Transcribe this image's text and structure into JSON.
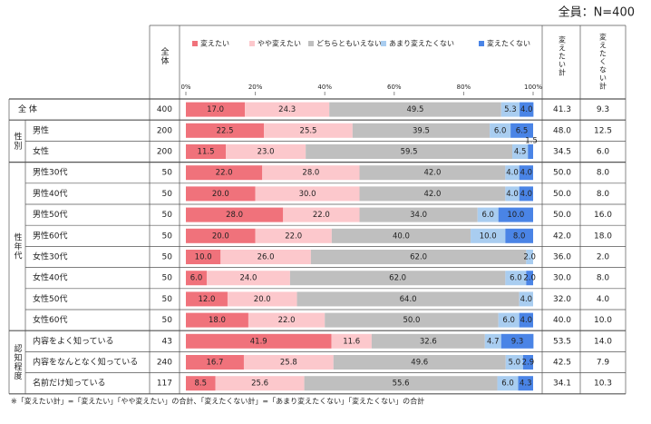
{
  "title": "全員：N=400",
  "header": {
    "n": "全体",
    "total_want": "変えたい計",
    "total_not": "変えたくない計"
  },
  "groups": [
    "性別",
    "性年代",
    "認知程度"
  ],
  "footnote": "※「変えたい計」=「変えたい」「やや変えたい」の合計、「変えたくない計」=「あまり変えたくない」「変えたくない」の合計",
  "chart_data": {
    "type": "stacked-bar",
    "categories": [
      "全 体",
      "男性",
      "女性",
      "男性30代",
      "男性40代",
      "男性50代",
      "男性60代",
      "女性30代",
      "女性40代",
      "女性50代",
      "女性60代",
      "内容をよく知っている",
      "内容をなんとなく知っている",
      "名前だけ知っている"
    ],
    "n": [
      400,
      200,
      200,
      50,
      50,
      50,
      50,
      50,
      50,
      50,
      50,
      43,
      240,
      117
    ],
    "xlim": [
      0,
      100
    ],
    "xticks": [
      {
        "value": 0,
        "label": "0%"
      },
      {
        "value": 20,
        "label": "20%"
      },
      {
        "value": 40,
        "label": "40%"
      },
      {
        "value": 60,
        "label": "60%"
      },
      {
        "value": 80,
        "label": "80%"
      },
      {
        "value": 100,
        "label": "100%"
      }
    ],
    "series": [
      {
        "name": "変えたい",
        "color": "#f0727b",
        "values": [
          17,
          22.5,
          11.5,
          22,
          20,
          28,
          20,
          10,
          6,
          12,
          18,
          41.9,
          16.7,
          8.5
        ],
        "value_labels": [
          "17.0",
          "22.5",
          "11.5",
          "22.0",
          "20.0",
          "28.0",
          "20.0",
          "10.0",
          "6.0",
          "12.0",
          "18.0",
          "41.9",
          "16.7",
          "8.5"
        ]
      },
      {
        "name": "やや変えたい",
        "color": "#fcc8cc",
        "values": [
          24.3,
          25.5,
          23,
          28,
          30,
          22,
          22,
          26,
          24,
          20,
          22,
          11.6,
          25.8,
          25.6
        ],
        "value_labels": [
          "24.3",
          "25.5",
          "23.0",
          "28.0",
          "30.0",
          "22.0",
          "22.0",
          "26.0",
          "24.0",
          "20.0",
          "22.0",
          "11.6",
          "25.8",
          "25.6"
        ]
      },
      {
        "name": "どちらともいえない",
        "color": "#bfbfbf",
        "values": [
          49.5,
          39.5,
          59.5,
          42,
          42,
          34,
          40,
          62,
          62,
          64,
          50,
          32.6,
          49.6,
          55.6
        ],
        "value_labels": [
          "49.5",
          "39.5",
          "59.5",
          "42.0",
          "42.0",
          "34.0",
          "40.0",
          "62.0",
          "62.0",
          "64.0",
          "50.0",
          "32.6",
          "49.6",
          "55.6"
        ]
      },
      {
        "name": "あまり変えたくない",
        "color": "#a9cdf0",
        "values": [
          5.3,
          6,
          4.5,
          4,
          4,
          6,
          10,
          2,
          6,
          4,
          6,
          4.7,
          5,
          6
        ],
        "value_labels": [
          "5.3",
          "6.0",
          "4.5",
          "4.0",
          "4.0",
          "6.0",
          "10.0",
          "2.0",
          "6.0",
          "4.0",
          "6.0",
          "4.7",
          "5.0",
          "6.0"
        ]
      },
      {
        "name": "変えたくない",
        "color": "#4a84e6",
        "values": [
          4,
          6.5,
          1.5,
          4,
          4,
          10,
          8,
          0,
          2,
          0,
          4,
          9.3,
          2.9,
          4.3
        ],
        "value_labels": [
          "4.0",
          "6.5",
          "1.5",
          "4.0",
          "4.0",
          "10.0",
          "8.0",
          null,
          "2.0",
          null,
          "4.0",
          "9.3",
          "2.9",
          "4.3"
        ]
      }
    ],
    "totals": [
      {
        "name": "変えたい計",
        "values": [
          "41.3",
          "48.0",
          "34.5",
          "50.0",
          "50.0",
          "50.0",
          "42.0",
          "36.0",
          "30.0",
          "32.0",
          "40.0",
          "53.5",
          "42.5",
          "34.1"
        ]
      },
      {
        "name": "変えたくない計",
        "values": [
          "9.3",
          "12.5",
          "6.0",
          "8.0",
          "8.0",
          "16.0",
          "18.0",
          "2.0",
          "8.0",
          "4.0",
          "10.0",
          "14.0",
          "7.9",
          "10.3"
        ]
      }
    ]
  }
}
